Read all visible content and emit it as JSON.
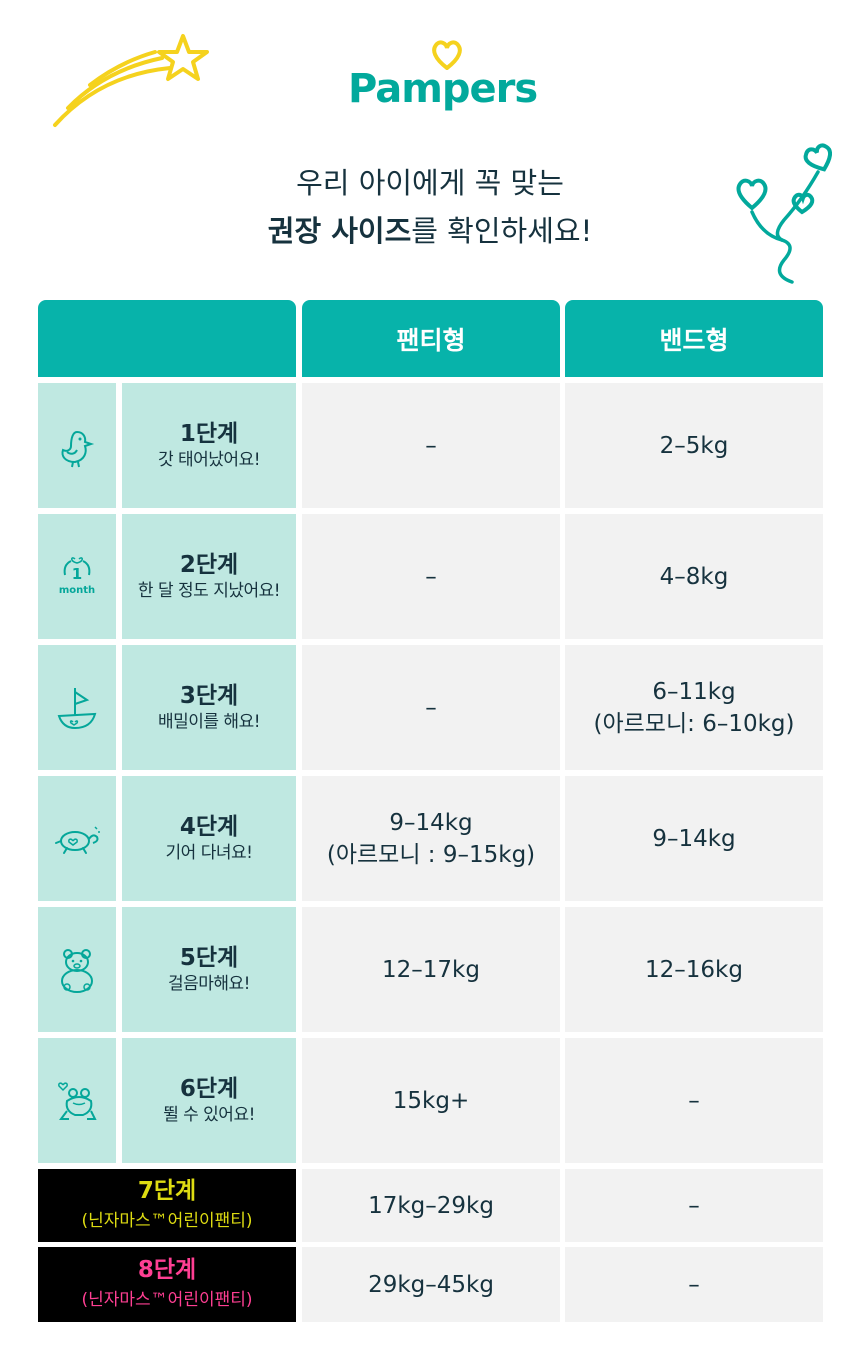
{
  "brand": {
    "logo_text": "Pampers"
  },
  "headline": {
    "line1": "우리 아이에게 꼭 맞는",
    "line2_bold": "권장 사이즈",
    "line2_rest": "를 확인하세요!"
  },
  "table": {
    "headers": {
      "col0": "",
      "pants": "팬티형",
      "band": "밴드형"
    },
    "rows": [
      {
        "title": "1단계",
        "subtitle": "갓 태어났어요!",
        "icon": "chick-icon",
        "pants": "–",
        "band": "2–5kg"
      },
      {
        "title": "2단계",
        "subtitle": "한 달 정도 지났어요!",
        "icon": "one-month-icon",
        "icon_text_num": "1",
        "icon_text_word": "month",
        "pants": "–",
        "band": "4–8kg"
      },
      {
        "title": "3단계",
        "subtitle": "배밀이를 해요!",
        "icon": "sailboat-icon",
        "pants": "–",
        "band": "6–11kg",
        "band_note": "(아르모니: 6–10kg)"
      },
      {
        "title": "4단계",
        "subtitle": "기어 다녀요!",
        "icon": "turtle-icon",
        "pants": "9–14kg",
        "pants_note": "(아르모니 : 9–15kg)",
        "band": "9–14kg"
      },
      {
        "title": "5단계",
        "subtitle": "걸음마해요!",
        "icon": "teddy-bear-icon",
        "pants": "12–17kg",
        "band": "12–16kg"
      },
      {
        "title": "6단계",
        "subtitle": "뛸 수 있어요!",
        "icon": "frog-icon",
        "pants": "15kg+",
        "band": "–"
      },
      {
        "title": "7단계",
        "subtitle": "(닌자마스™어린이팬티)",
        "pants": "17kg–29kg",
        "band": "–"
      },
      {
        "title": "8단계",
        "subtitle": "(닌자마스™어린이팬티)",
        "pants": "29kg–45kg",
        "band": "–"
      }
    ]
  },
  "colors": {
    "teal_header": "#07b3aa",
    "teal_light": "#bfe8e1",
    "cell_gray": "#f2f2f2",
    "text_dark": "#16323e",
    "stage7_yellow": "#dedc12",
    "stage8_pink": "#ff3f93",
    "star_yellow": "#f5d21e"
  },
  "decorations": [
    "shooting-star-icon",
    "hearts-swirl-icon",
    "logo-heart-icon"
  ]
}
